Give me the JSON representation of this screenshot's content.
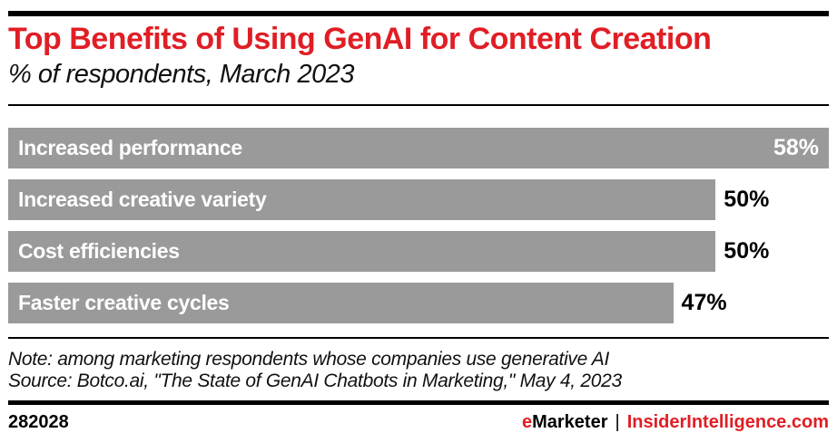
{
  "header": {
    "title": "Top Benefits of Using GenAI for Content Creation",
    "subtitle": "% of respondents, March 2023"
  },
  "chart_data": {
    "type": "bar",
    "orientation": "horizontal",
    "title": "Top Benefits of Using GenAI for Content Creation",
    "subtitle": "% of respondents, March 2023",
    "categories": [
      "Increased performance",
      "Increased creative variety",
      "Cost efficiencies",
      "Faster creative cycles"
    ],
    "values": [
      58,
      50,
      50,
      47
    ],
    "value_labels": [
      "58%",
      "50%",
      "50%",
      "47%"
    ],
    "value_label_inside": [
      true,
      false,
      false,
      false
    ],
    "xlim": [
      0,
      58
    ],
    "unit": "%",
    "grid": false,
    "legend": false,
    "bar_color": "#9a9a9a"
  },
  "notes": {
    "note": "Note: among marketing respondents whose companies use generative AI",
    "source": "Source: Botco.ai, \"The State of GenAI Chatbots in Marketing,\" May 4, 2023"
  },
  "footer": {
    "chart_id": "282028",
    "brand_e": "e",
    "brand_rest": "Marketer",
    "separator": "|",
    "site": "InsiderIntelligence.com"
  },
  "colors": {
    "accent_red": "#e01e25",
    "bar_gray": "#9a9a9a",
    "rule_black": "#000000"
  }
}
